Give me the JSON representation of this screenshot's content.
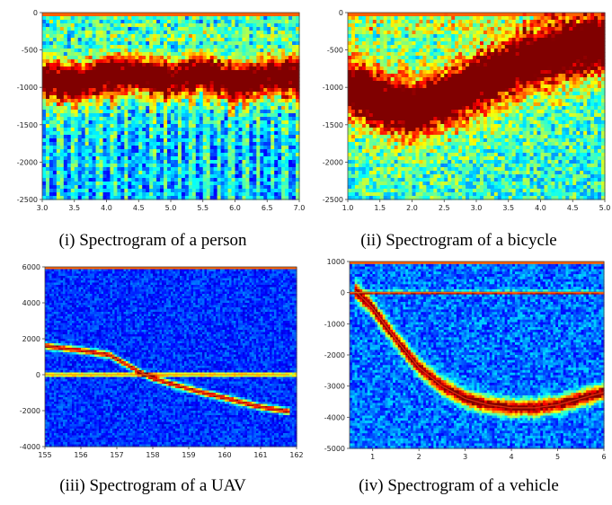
{
  "figure": {
    "captions": [
      "(i) Spectrogram of a person",
      "(ii) Spectrogram of a bicycle",
      "(iii) Spectrogram of a UAV",
      "(iv) Spectrogram of a vehicle"
    ]
  },
  "chart_data": [
    {
      "type": "heatmap",
      "subject": "person",
      "xlim": [
        3.0,
        7.0
      ],
      "ylim": [
        -2500,
        0
      ],
      "xticks": [
        "3.0",
        "3.5",
        "4.0",
        "4.5",
        "5.0",
        "5.5",
        "6.0",
        "6.5",
        "7.0"
      ],
      "yticks": [
        "0",
        "-500",
        "-1000",
        "-1500",
        "-2000",
        "-2500"
      ],
      "colormap": "jet",
      "dominant_trace": {
        "x": [
          3.0,
          3.5,
          4.0,
          4.5,
          5.0,
          5.5,
          6.0,
          6.5,
          7.0
        ],
        "y": [
          -900,
          -950,
          -850,
          -820,
          -900,
          -800,
          -950,
          -850,
          -850
        ]
      }
    },
    {
      "type": "heatmap",
      "subject": "bicycle",
      "xlim": [
        1.0,
        5.0
      ],
      "ylim": [
        -2500,
        0
      ],
      "xticks": [
        "1.0",
        "1.5",
        "2.0",
        "2.5",
        "3.0",
        "3.5",
        "4.0",
        "4.5",
        "5.0"
      ],
      "yticks": [
        "0",
        "-500",
        "-1000",
        "-1500",
        "-2000",
        "-2500"
      ],
      "colormap": "jet",
      "dominant_trace": {
        "x": [
          1.0,
          1.5,
          2.0,
          2.5,
          3.0,
          3.5,
          4.0,
          4.5,
          5.0
        ],
        "y": [
          -1000,
          -1200,
          -1300,
          -1150,
          -950,
          -750,
          -600,
          -500,
          -420
        ]
      }
    },
    {
      "type": "heatmap",
      "subject": "UAV",
      "xlim": [
        155,
        162
      ],
      "ylim": [
        -4000,
        6000
      ],
      "xticks": [
        "155",
        "156",
        "157",
        "158",
        "159",
        "160",
        "161",
        "162"
      ],
      "yticks": [
        "6000",
        "4000",
        "2000",
        "0",
        "-2000",
        "-4000"
      ],
      "colormap": "jet",
      "dominant_trace": {
        "x": [
          155,
          156,
          156.8,
          157.5,
          158,
          159,
          160,
          161,
          161.8
        ],
        "y": [
          1600,
          1350,
          1100,
          300,
          -200,
          -800,
          -1300,
          -1800,
          -2050
        ]
      },
      "zero_line": {
        "x": [
          155,
          161.8
        ],
        "y": [
          0,
          0
        ]
      }
    },
    {
      "type": "heatmap",
      "subject": "vehicle",
      "xlim": [
        0.5,
        6.0
      ],
      "ylim": [
        -5000,
        1000
      ],
      "xticks": [
        "1",
        "2",
        "3",
        "4",
        "5",
        "6"
      ],
      "yticks": [
        "1000",
        "0",
        "-1000",
        "-2000",
        "-3000",
        "-4000",
        "-5000"
      ],
      "colormap": "jet",
      "dominant_trace": {
        "x": [
          0.6,
          1.0,
          1.5,
          2.0,
          2.5,
          3.0,
          3.5,
          4.0,
          4.5,
          5.0,
          5.5,
          6.0
        ],
        "y": [
          100,
          -500,
          -1500,
          -2400,
          -3000,
          -3400,
          -3600,
          -3700,
          -3700,
          -3600,
          -3400,
          -3200
        ]
      },
      "zero_line": {
        "x": [
          0.5,
          6.0
        ],
        "y": [
          0,
          0
        ]
      }
    }
  ]
}
